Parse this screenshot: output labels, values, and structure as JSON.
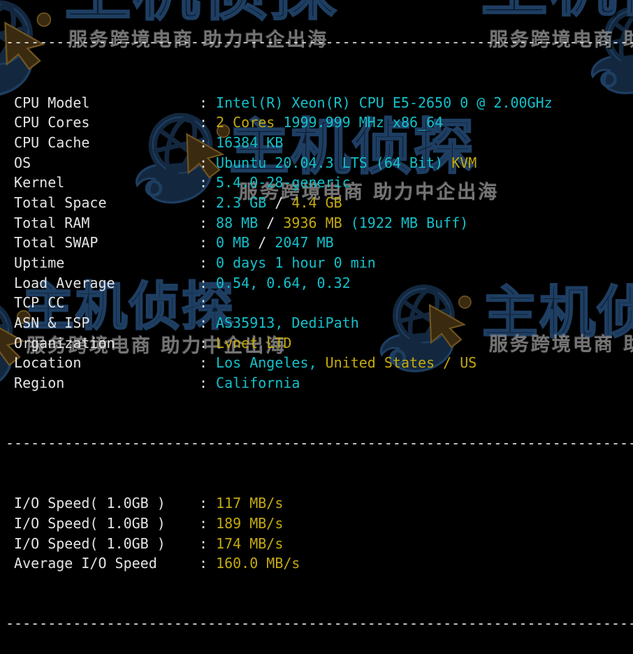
{
  "terminal": {
    "background": "#000000",
    "colors": {
      "cyan": "#14C0CA",
      "yellow": "#C4AA10",
      "plain": "#E4E4E4"
    },
    "separator": "---------------------------------------------------------------------------",
    "system_info": [
      {
        "label": "CPU Model",
        "segments": [
          {
            "text": "Intel(R) Xeon(R) CPU E5-2650 0 @ 2.00GHz",
            "color": "cyan"
          }
        ]
      },
      {
        "label": "CPU Cores",
        "segments": [
          {
            "text": "2 Cores",
            "color": "yellow"
          },
          {
            "text": " 1999.999 MHz x86_64",
            "color": "cyan"
          }
        ]
      },
      {
        "label": "CPU Cache",
        "segments": [
          {
            "text": "16384 KB",
            "color": "cyan"
          }
        ]
      },
      {
        "label": "OS",
        "segments": [
          {
            "text": "Ubuntu 20.04.3 LTS (64 Bit) ",
            "color": "cyan"
          },
          {
            "text": "KVM",
            "color": "yellow"
          }
        ]
      },
      {
        "label": "Kernel",
        "segments": [
          {
            "text": "5.4.0-28-generic",
            "color": "cyan"
          }
        ]
      },
      {
        "label": "Total Space",
        "segments": [
          {
            "text": "2.3 GB",
            "color": "cyan"
          },
          {
            "text": " / ",
            "color": "plain"
          },
          {
            "text": "4.4 GB",
            "color": "yellow"
          }
        ]
      },
      {
        "label": "Total RAM",
        "segments": [
          {
            "text": "88 MB",
            "color": "cyan"
          },
          {
            "text": " / ",
            "color": "plain"
          },
          {
            "text": "3936 MB",
            "color": "yellow"
          },
          {
            "text": " (1922 MB Buff)",
            "color": "cyan"
          }
        ]
      },
      {
        "label": "Total SWAP",
        "segments": [
          {
            "text": "0 MB",
            "color": "cyan"
          },
          {
            "text": " / ",
            "color": "plain"
          },
          {
            "text": "2047 MB",
            "color": "cyan"
          }
        ]
      },
      {
        "label": "Uptime",
        "segments": [
          {
            "text": "0 days 1 hour 0 min",
            "color": "cyan"
          }
        ]
      },
      {
        "label": "Load Average",
        "segments": [
          {
            "text": "0.54, 0.64, 0.32",
            "color": "cyan"
          }
        ]
      },
      {
        "label": "TCP CC",
        "segments": []
      },
      {
        "label": "ASN & ISP",
        "segments": [
          {
            "text": "AS35913, DediPath",
            "color": "cyan"
          }
        ]
      },
      {
        "label": "Organization",
        "segments": [
          {
            "text": "Lvnet LTD",
            "color": "yellow"
          }
        ]
      },
      {
        "label": "Location",
        "segments": [
          {
            "text": "Los Angeles, ",
            "color": "cyan"
          },
          {
            "text": "United States / US",
            "color": "yellow"
          }
        ]
      },
      {
        "label": "Region",
        "segments": [
          {
            "text": "California",
            "color": "cyan"
          }
        ]
      }
    ],
    "io_tests": [
      {
        "label": "I/O Speed( 1.0GB )",
        "segments": [
          {
            "text": "117 MB/s",
            "color": "yellow"
          }
        ]
      },
      {
        "label": "I/O Speed( 1.0GB )",
        "segments": [
          {
            "text": "189 MB/s",
            "color": "yellow"
          }
        ]
      },
      {
        "label": "I/O Speed( 1.0GB )",
        "segments": [
          {
            "text": "174 MB/s",
            "color": "yellow"
          }
        ]
      },
      {
        "label": "Average I/O Speed",
        "segments": [
          {
            "text": "160.0 MB/s",
            "color": "yellow"
          }
        ]
      }
    ]
  },
  "watermark": {
    "brand_text": "主机侦探",
    "slogan": "服务跨境电商 助力中企出海",
    "logo_icon": "globe-cursor-logo",
    "brand_fill_color": "#0C1C30",
    "brand_stroke_color": "#1E3E62",
    "slogan_color": "#8A8A8A",
    "logo_navy_color": "#13283F",
    "logo_brown_color": "#3A2A10"
  }
}
